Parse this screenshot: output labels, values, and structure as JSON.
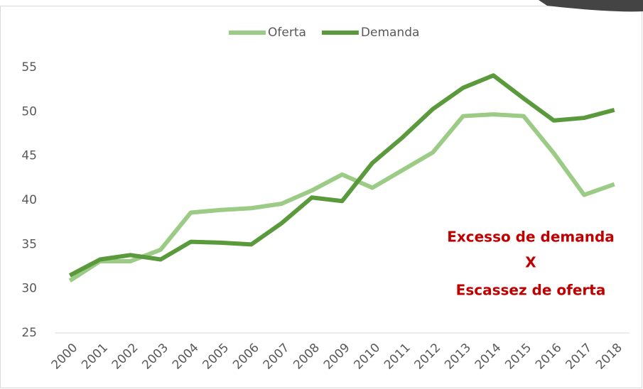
{
  "chart_data": {
    "type": "line",
    "categories": [
      "2000",
      "2001",
      "2002",
      "2003",
      "2004",
      "2005",
      "2006",
      "2007",
      "2008",
      "2009",
      "2010",
      "2011",
      "2012",
      "2013",
      "2014",
      "2015",
      "2016",
      "2017",
      "2018"
    ],
    "series": [
      {
        "name": "Oferta",
        "color": "#9ccb86",
        "values": [
          30.9,
          33.1,
          33.1,
          34.4,
          38.6,
          38.9,
          39.1,
          39.6,
          41.1,
          42.9,
          41.4,
          43.4,
          45.4,
          49.5,
          49.7,
          49.5,
          45.3,
          40.6,
          41.8
        ]
      },
      {
        "name": "Demanda",
        "color": "#5a9a3c",
        "values": [
          31.5,
          33.3,
          33.8,
          33.3,
          35.3,
          35.2,
          35.0,
          37.4,
          40.3,
          39.9,
          44.2,
          47.1,
          50.3,
          52.7,
          54.1,
          51.5,
          49.0,
          49.3,
          50.2
        ]
      }
    ],
    "ylim": [
      25,
      55
    ],
    "yticks": [
      25,
      30,
      35,
      40,
      45,
      50,
      55
    ],
    "grid": false,
    "legend": "top",
    "annotation": [
      "Excesso de demanda",
      "X",
      "Escassez de oferta"
    ]
  }
}
